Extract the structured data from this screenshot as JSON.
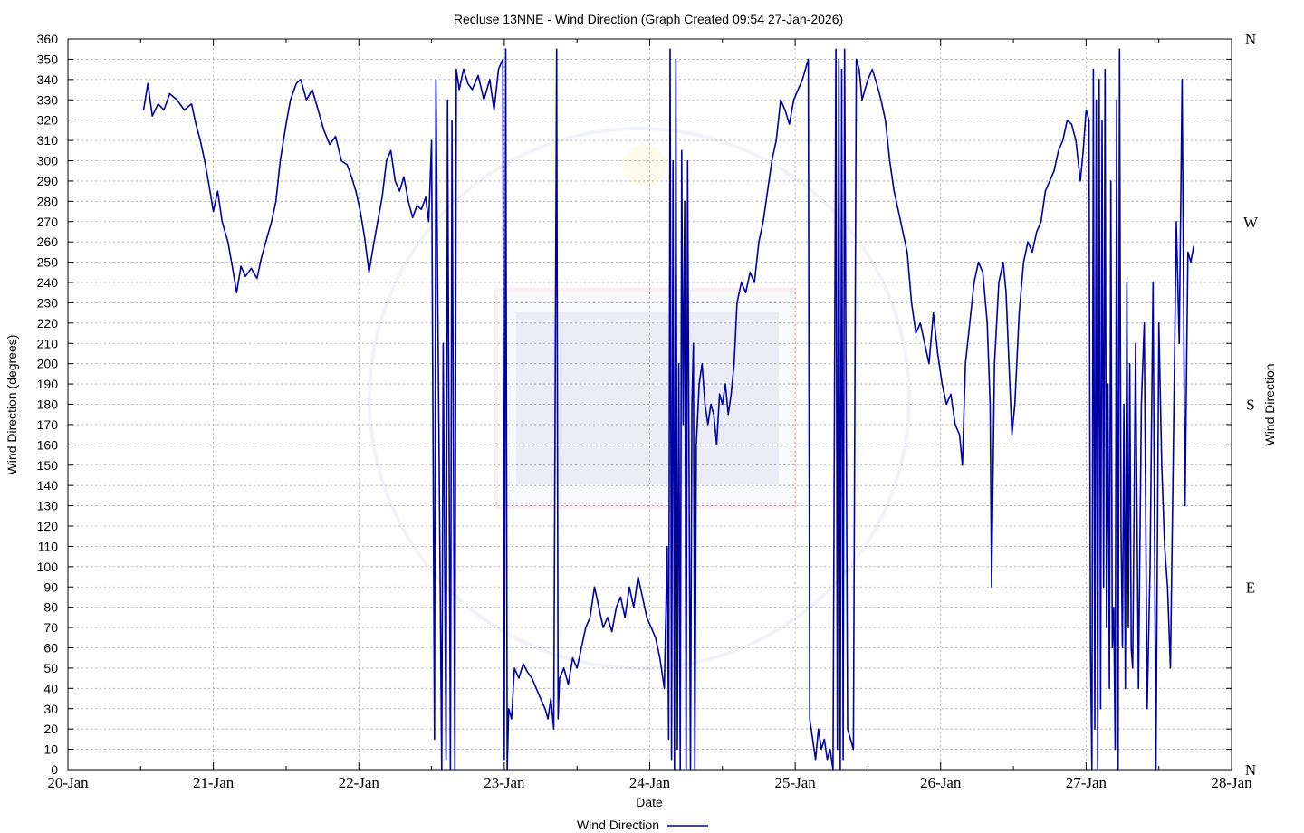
{
  "chart_data": {
    "type": "line",
    "title": "Recluse 13NNE - Wind Direction (Graph Created 09:54 27-Jan-2026)",
    "xlabel": "Date",
    "ylabel": "Wind Direction (degrees)",
    "y2label": "Wind Direction",
    "x_ticks": [
      "20-Jan",
      "21-Jan",
      "22-Jan",
      "23-Jan",
      "24-Jan",
      "25-Jan",
      "26-Jan",
      "27-Jan",
      "28-Jan"
    ],
    "xlim": [
      0,
      8
    ],
    "ylim": [
      0,
      360
    ],
    "y_tick_step": 10,
    "compass_ticks": [
      {
        "value": 360,
        "label": "N"
      },
      {
        "value": 270,
        "label": "W"
      },
      {
        "value": 180,
        "label": "S"
      },
      {
        "value": 90,
        "label": "E"
      },
      {
        "value": 0,
        "label": "N"
      }
    ],
    "grid": true,
    "legend": {
      "position": "bottom-center",
      "label": "Wind Direction"
    },
    "series": [
      {
        "name": "Wind Direction",
        "color": "#0000a8",
        "points": [
          [
            0.52,
            325
          ],
          [
            0.55,
            338
          ],
          [
            0.58,
            322
          ],
          [
            0.62,
            328
          ],
          [
            0.66,
            325
          ],
          [
            0.7,
            333
          ],
          [
            0.75,
            330
          ],
          [
            0.8,
            325
          ],
          [
            0.85,
            328
          ],
          [
            0.88,
            318
          ],
          [
            0.91,
            310
          ],
          [
            0.94,
            300
          ],
          [
            0.97,
            288
          ],
          [
            1.0,
            275
          ],
          [
            1.03,
            285
          ],
          [
            1.06,
            270
          ],
          [
            1.1,
            260
          ],
          [
            1.13,
            248
          ],
          [
            1.16,
            235
          ],
          [
            1.19,
            248
          ],
          [
            1.22,
            243
          ],
          [
            1.26,
            247
          ],
          [
            1.3,
            242
          ],
          [
            1.33,
            252
          ],
          [
            1.36,
            260
          ],
          [
            1.4,
            270
          ],
          [
            1.43,
            280
          ],
          [
            1.46,
            300
          ],
          [
            1.5,
            318
          ],
          [
            1.53,
            330
          ],
          [
            1.57,
            338
          ],
          [
            1.6,
            340
          ],
          [
            1.64,
            330
          ],
          [
            1.68,
            335
          ],
          [
            1.72,
            325
          ],
          [
            1.76,
            315
          ],
          [
            1.8,
            308
          ],
          [
            1.84,
            312
          ],
          [
            1.88,
            300
          ],
          [
            1.92,
            298
          ],
          [
            1.95,
            292
          ],
          [
            1.98,
            285
          ],
          [
            2.01,
            275
          ],
          [
            2.04,
            262
          ],
          [
            2.07,
            245
          ],
          [
            2.1,
            258
          ],
          [
            2.13,
            270
          ],
          [
            2.16,
            282
          ],
          [
            2.19,
            300
          ],
          [
            2.22,
            305
          ],
          [
            2.25,
            290
          ],
          [
            2.28,
            285
          ],
          [
            2.31,
            292
          ],
          [
            2.34,
            280
          ],
          [
            2.37,
            272
          ],
          [
            2.4,
            278
          ],
          [
            2.43,
            276
          ],
          [
            2.46,
            282
          ],
          [
            2.48,
            270
          ],
          [
            2.5,
            310
          ],
          [
            2.52,
            15
          ],
          [
            2.53,
            340
          ],
          [
            2.55,
            170
          ],
          [
            2.57,
            0
          ],
          [
            2.58,
            210
          ],
          [
            2.6,
            5
          ],
          [
            2.61,
            330
          ],
          [
            2.63,
            0
          ],
          [
            2.64,
            320
          ],
          [
            2.66,
            0
          ],
          [
            2.67,
            345
          ],
          [
            2.69,
            335
          ],
          [
            2.72,
            345
          ],
          [
            2.75,
            338
          ],
          [
            2.78,
            335
          ],
          [
            2.82,
            342
          ],
          [
            2.86,
            330
          ],
          [
            2.9,
            340
          ],
          [
            2.93,
            325
          ],
          [
            2.96,
            345
          ],
          [
            2.99,
            350
          ],
          [
            3.0,
            5
          ],
          [
            3.01,
            355
          ],
          [
            3.02,
            0
          ],
          [
            3.03,
            30
          ],
          [
            3.05,
            25
          ],
          [
            3.07,
            50
          ],
          [
            3.1,
            45
          ],
          [
            3.13,
            52
          ],
          [
            3.16,
            48
          ],
          [
            3.19,
            45
          ],
          [
            3.22,
            40
          ],
          [
            3.25,
            35
          ],
          [
            3.28,
            30
          ],
          [
            3.3,
            25
          ],
          [
            3.32,
            35
          ],
          [
            3.34,
            20
          ],
          [
            3.36,
            355
          ],
          [
            3.37,
            25
          ],
          [
            3.38,
            45
          ],
          [
            3.41,
            50
          ],
          [
            3.44,
            42
          ],
          [
            3.47,
            55
          ],
          [
            3.5,
            50
          ],
          [
            3.53,
            60
          ],
          [
            3.56,
            70
          ],
          [
            3.59,
            75
          ],
          [
            3.62,
            90
          ],
          [
            3.65,
            80
          ],
          [
            3.68,
            70
          ],
          [
            3.71,
            75
          ],
          [
            3.74,
            68
          ],
          [
            3.77,
            80
          ],
          [
            3.8,
            85
          ],
          [
            3.83,
            75
          ],
          [
            3.86,
            90
          ],
          [
            3.89,
            80
          ],
          [
            3.92,
            95
          ],
          [
            3.95,
            85
          ],
          [
            3.98,
            75
          ],
          [
            4.01,
            70
          ],
          [
            4.04,
            65
          ],
          [
            4.07,
            55
          ],
          [
            4.1,
            40
          ],
          [
            4.12,
            110
          ],
          [
            4.13,
            15
          ],
          [
            4.14,
            355
          ],
          [
            4.15,
            5
          ],
          [
            4.16,
            300
          ],
          [
            4.17,
            0
          ],
          [
            4.18,
            350
          ],
          [
            4.19,
            10
          ],
          [
            4.2,
            200
          ],
          [
            4.21,
            0
          ],
          [
            4.22,
            305
          ],
          [
            4.23,
            170
          ],
          [
            4.24,
            280
          ],
          [
            4.25,
            0
          ],
          [
            4.26,
            300
          ],
          [
            4.27,
            150
          ],
          [
            4.28,
            0
          ],
          [
            4.29,
            180
          ],
          [
            4.3,
            210
          ],
          [
            4.31,
            0
          ],
          [
            4.32,
            160
          ],
          [
            4.34,
            190
          ],
          [
            4.36,
            200
          ],
          [
            4.38,
            180
          ],
          [
            4.4,
            170
          ],
          [
            4.42,
            180
          ],
          [
            4.44,
            175
          ],
          [
            4.46,
            160
          ],
          [
            4.48,
            185
          ],
          [
            4.5,
            180
          ],
          [
            4.52,
            190
          ],
          [
            4.54,
            175
          ],
          [
            4.56,
            185
          ],
          [
            4.58,
            200
          ],
          [
            4.6,
            230
          ],
          [
            4.63,
            240
          ],
          [
            4.66,
            235
          ],
          [
            4.69,
            245
          ],
          [
            4.72,
            240
          ],
          [
            4.75,
            260
          ],
          [
            4.78,
            270
          ],
          [
            4.81,
            285
          ],
          [
            4.84,
            300
          ],
          [
            4.87,
            310
          ],
          [
            4.9,
            330
          ],
          [
            4.93,
            325
          ],
          [
            4.96,
            318
          ],
          [
            4.99,
            330
          ],
          [
            5.02,
            335
          ],
          [
            5.05,
            340
          ],
          [
            5.07,
            345
          ],
          [
            5.09,
            350
          ],
          [
            5.1,
            25
          ],
          [
            5.12,
            15
          ],
          [
            5.14,
            5
          ],
          [
            5.16,
            20
          ],
          [
            5.18,
            10
          ],
          [
            5.2,
            15
          ],
          [
            5.22,
            5
          ],
          [
            5.24,
            10
          ],
          [
            5.26,
            0
          ],
          [
            5.28,
            355
          ],
          [
            5.29,
            10
          ],
          [
            5.3,
            350
          ],
          [
            5.31,
            0
          ],
          [
            5.32,
            345
          ],
          [
            5.33,
            5
          ],
          [
            5.34,
            355
          ],
          [
            5.36,
            20
          ],
          [
            5.38,
            15
          ],
          [
            5.4,
            10
          ],
          [
            5.42,
            350
          ],
          [
            5.44,
            345
          ],
          [
            5.46,
            330
          ],
          [
            5.48,
            335
          ],
          [
            5.5,
            340
          ],
          [
            5.53,
            345
          ],
          [
            5.56,
            338
          ],
          [
            5.59,
            330
          ],
          [
            5.62,
            320
          ],
          [
            5.65,
            300
          ],
          [
            5.68,
            285
          ],
          [
            5.71,
            275
          ],
          [
            5.74,
            265
          ],
          [
            5.77,
            255
          ],
          [
            5.8,
            230
          ],
          [
            5.83,
            215
          ],
          [
            5.86,
            220
          ],
          [
            5.89,
            210
          ],
          [
            5.92,
            200
          ],
          [
            5.95,
            225
          ],
          [
            5.98,
            205
          ],
          [
            6.01,
            190
          ],
          [
            6.04,
            180
          ],
          [
            6.07,
            185
          ],
          [
            6.1,
            170
          ],
          [
            6.13,
            165
          ],
          [
            6.15,
            150
          ],
          [
            6.17,
            200
          ],
          [
            6.2,
            220
          ],
          [
            6.23,
            240
          ],
          [
            6.26,
            250
          ],
          [
            6.29,
            245
          ],
          [
            6.32,
            220
          ],
          [
            6.34,
            180
          ],
          [
            6.35,
            90
          ],
          [
            6.37,
            200
          ],
          [
            6.4,
            240
          ],
          [
            6.43,
            250
          ],
          [
            6.45,
            235
          ],
          [
            6.47,
            200
          ],
          [
            6.49,
            165
          ],
          [
            6.51,
            180
          ],
          [
            6.54,
            225
          ],
          [
            6.57,
            250
          ],
          [
            6.6,
            260
          ],
          [
            6.63,
            255
          ],
          [
            6.66,
            265
          ],
          [
            6.69,
            270
          ],
          [
            6.72,
            285
          ],
          [
            6.75,
            290
          ],
          [
            6.78,
            295
          ],
          [
            6.81,
            305
          ],
          [
            6.84,
            310
          ],
          [
            6.87,
            320
          ],
          [
            6.9,
            318
          ],
          [
            6.93,
            310
          ],
          [
            6.96,
            290
          ],
          [
            6.98,
            305
          ],
          [
            7.0,
            325
          ],
          [
            7.02,
            320
          ],
          [
            7.03,
            60
          ],
          [
            7.04,
            0
          ],
          [
            7.05,
            345
          ],
          [
            7.06,
            20
          ],
          [
            7.07,
            330
          ],
          [
            7.08,
            0
          ],
          [
            7.09,
            340
          ],
          [
            7.1,
            30
          ],
          [
            7.11,
            320
          ],
          [
            7.12,
            90
          ],
          [
            7.13,
            345
          ],
          [
            7.14,
            70
          ],
          [
            7.15,
            190
          ],
          [
            7.16,
            40
          ],
          [
            7.17,
            290
          ],
          [
            7.18,
            60
          ],
          [
            7.19,
            80
          ],
          [
            7.2,
            10
          ],
          [
            7.21,
            330
          ],
          [
            7.22,
            0
          ],
          [
            7.23,
            355
          ],
          [
            7.24,
            120
          ],
          [
            7.25,
            60
          ],
          [
            7.26,
            180
          ],
          [
            7.27,
            40
          ],
          [
            7.28,
            240
          ],
          [
            7.29,
            70
          ],
          [
            7.3,
            200
          ],
          [
            7.31,
            60
          ],
          [
            7.32,
            50
          ],
          [
            7.34,
            210
          ],
          [
            7.36,
            40
          ],
          [
            7.38,
            180
          ],
          [
            7.4,
            220
          ],
          [
            7.42,
            30
          ],
          [
            7.44,
            100
          ],
          [
            7.46,
            240
          ],
          [
            7.48,
            0
          ],
          [
            7.5,
            220
          ],
          [
            7.52,
            150
          ],
          [
            7.54,
            110
          ],
          [
            7.56,
            90
          ],
          [
            7.58,
            50
          ],
          [
            7.6,
            160
          ],
          [
            7.62,
            270
          ],
          [
            7.64,
            210
          ],
          [
            7.66,
            340
          ],
          [
            7.68,
            130
          ],
          [
            7.7,
            255
          ],
          [
            7.72,
            250
          ],
          [
            7.74,
            258
          ]
        ]
      }
    ]
  }
}
